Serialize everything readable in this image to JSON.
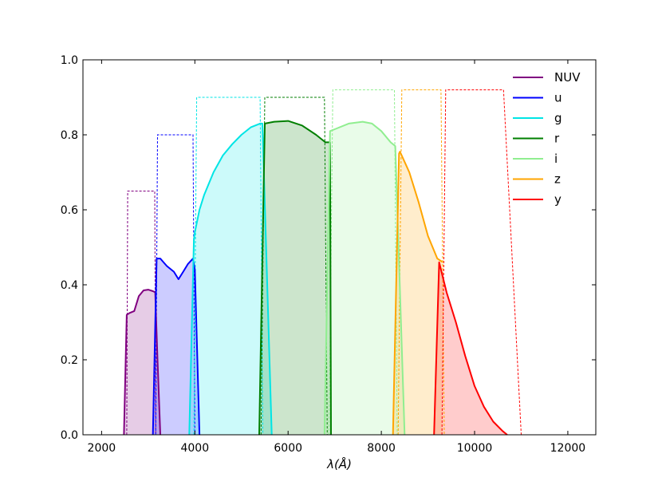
{
  "chart_data": {
    "type": "area",
    "xlabel": "λ(Å)",
    "ylabel": "",
    "xlim": [
      1600,
      12600
    ],
    "ylim": [
      0.0,
      1.0
    ],
    "xticks": [
      2000,
      4000,
      6000,
      8000,
      10000,
      12000
    ],
    "yticks": [
      0.0,
      0.2,
      0.4,
      0.6,
      0.8,
      1.0
    ],
    "xtick_labels": [
      "2000",
      "4000",
      "6000",
      "8000",
      "10000",
      "12000"
    ],
    "ytick_labels": [
      "0.0",
      "0.2",
      "0.4",
      "0.6",
      "0.8",
      "1.0"
    ],
    "grid": false,
    "legend_position": "top-right",
    "series": [
      {
        "name": "NUV",
        "color": "#800080",
        "x": [
          2480,
          2540,
          2600,
          2700,
          2800,
          2900,
          3000,
          3100,
          3150,
          3200,
          3260
        ],
        "y": [
          0.0,
          0.32,
          0.325,
          0.33,
          0.37,
          0.385,
          0.387,
          0.383,
          0.38,
          0.2,
          0.0
        ],
        "envelope": {
          "x": [
            2540,
            2560,
            3140,
            3160
          ],
          "y": [
            0.0,
            0.65,
            0.65,
            0.0
          ]
        }
      },
      {
        "name": "u",
        "color": "#0000ff",
        "x": [
          3100,
          3180,
          3260,
          3400,
          3550,
          3650,
          3750,
          3850,
          3960,
          4000,
          4100
        ],
        "y": [
          0.0,
          0.47,
          0.47,
          0.45,
          0.435,
          0.415,
          0.435,
          0.455,
          0.47,
          0.44,
          0.0
        ],
        "envelope": {
          "x": [
            3160,
            3200,
            3960,
            4000
          ],
          "y": [
            0.0,
            0.8,
            0.8,
            0.0
          ]
        }
      },
      {
        "name": "g",
        "color": "#00e5e5",
        "x": [
          3880,
          3980,
          4000,
          4100,
          4200,
          4400,
          4600,
          4800,
          5000,
          5200,
          5400,
          5450,
          5650
        ],
        "y": [
          0.0,
          0.52,
          0.54,
          0.6,
          0.64,
          0.7,
          0.745,
          0.775,
          0.8,
          0.82,
          0.83,
          0.83,
          0.0
        ],
        "envelope": {
          "x": [
            3980,
            4040,
            5400,
            5460
          ],
          "y": [
            0.0,
            0.9,
            0.9,
            0.0
          ]
        }
      },
      {
        "name": "r",
        "color": "#007f00",
        "x": [
          5380,
          5500,
          5700,
          6000,
          6300,
          6600,
          6800,
          6900,
          6920
        ],
        "y": [
          0.0,
          0.83,
          0.835,
          0.837,
          0.825,
          0.8,
          0.78,
          0.78,
          0.0
        ],
        "envelope": {
          "x": [
            5420,
            5500,
            6780,
            6840
          ],
          "y": [
            0.0,
            0.9,
            0.9,
            0.0
          ]
        }
      },
      {
        "name": "i",
        "color": "#90ee90",
        "x": [
          6780,
          6900,
          7000,
          7300,
          7600,
          7800,
          8000,
          8200,
          8300,
          8500
        ],
        "y": [
          0.0,
          0.81,
          0.815,
          0.83,
          0.835,
          0.83,
          0.81,
          0.78,
          0.77,
          0.0
        ],
        "envelope": {
          "x": [
            6880,
            6960,
            8280,
            8340
          ],
          "y": [
            0.0,
            0.92,
            0.92,
            0.0
          ]
        }
      },
      {
        "name": "z",
        "color": "#ffa500",
        "x": [
          8250,
          8380,
          8400,
          8600,
          8800,
          9000,
          9200,
          9320
        ],
        "y": [
          0.0,
          0.75,
          0.755,
          0.7,
          0.62,
          0.53,
          0.47,
          0.46
        ],
        "envelope": {
          "x": [
            8360,
            8440,
            9280,
            9350
          ],
          "y": [
            0.0,
            0.92,
            0.92,
            0.0
          ]
        }
      },
      {
        "name": "y",
        "color": "#ff0000",
        "x": [
          9130,
          9240,
          9400,
          9600,
          9800,
          10000,
          10200,
          10400,
          10600,
          10700
        ],
        "y": [
          0.0,
          0.46,
          0.38,
          0.3,
          0.21,
          0.13,
          0.075,
          0.035,
          0.01,
          0.0
        ],
        "envelope": {
          "x": [
            9300,
            9380,
            10620,
            11000
          ],
          "y": [
            0.0,
            0.92,
            0.92,
            0.0
          ]
        }
      }
    ]
  }
}
